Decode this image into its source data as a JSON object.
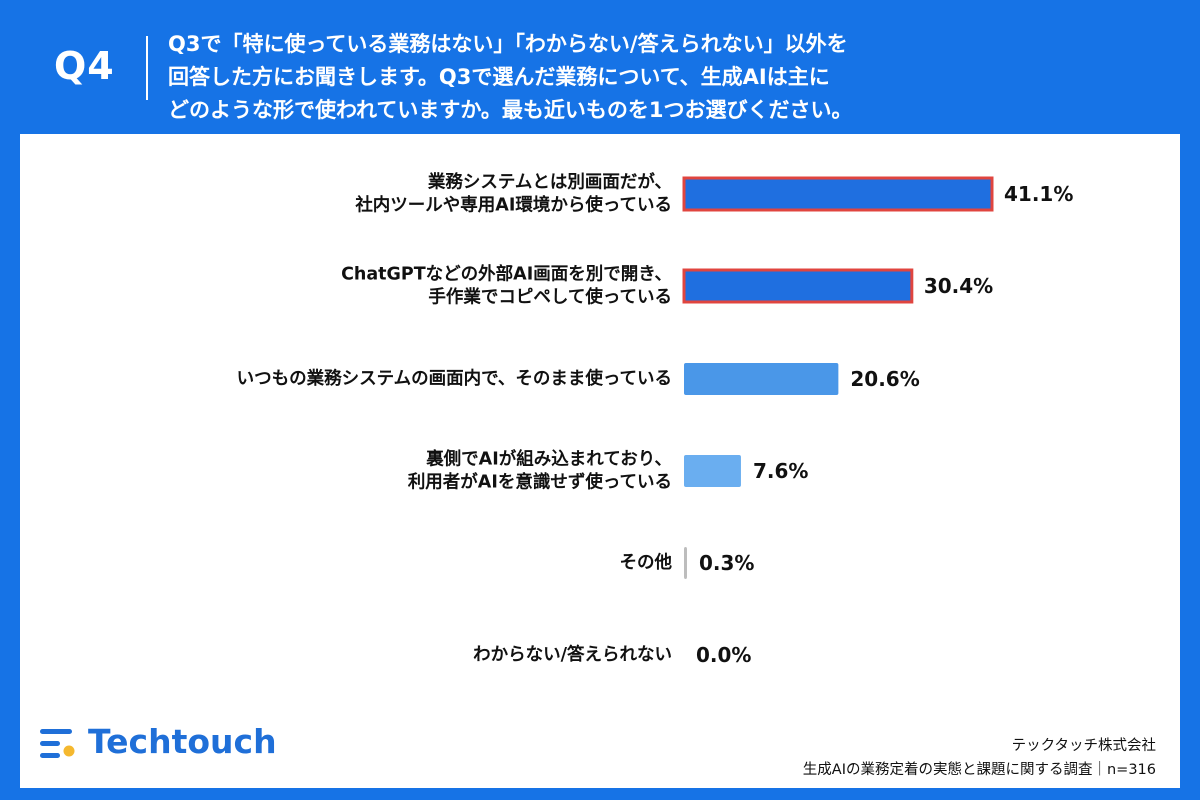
{
  "header": {
    "question_number": "Q4",
    "question_lines": [
      "Q3で「特に使っている業務はない」「わからない/答えられない」以外を",
      "回答した方にお聞きします。Q3で選んだ業務について、生成AIは主に",
      "どのような形で使われていますか。最も近いものを1つお選びください。"
    ]
  },
  "chart_data": {
    "type": "bar",
    "orientation": "horizontal",
    "unit": "%",
    "categories": [
      [
        "業務システムとは別画面だが、",
        "社内ツールや専用AI環境から使っている"
      ],
      [
        "ChatGPTなどの外部AI画面を別で開き、",
        "手作業でコピペして使っている"
      ],
      [
        "いつもの業務システムの画面内で、そのまま使っている"
      ],
      [
        "裏側でAIが組み込まれており、",
        "利用者がAIを意識せず使っている"
      ],
      [
        "その他"
      ],
      [
        "わからない/答えられない"
      ]
    ],
    "values": [
      41.1,
      30.4,
      20.6,
      7.6,
      0.3,
      0.0
    ],
    "value_labels": [
      "41.1%",
      "30.4%",
      "20.6%",
      "7.6%",
      "0.3%",
      "0.0%"
    ],
    "bar_colors": [
      "#1f6fe0",
      "#1f6fe0",
      "#4a97e8",
      "#6aaef0",
      "#bdbdbd",
      "#bdbdbd"
    ],
    "highlight_border": "#e0453f",
    "highlighted": [
      true,
      true,
      false,
      false,
      false,
      false
    ],
    "xlim": [
      0,
      41.1
    ]
  },
  "footer": {
    "logo_text": "Techtouch",
    "company": "テックタッチ株式会社",
    "survey": "生成AIの業務定着の実態と課題に関する調査｜n=316"
  },
  "colors": {
    "background": "#1673e6",
    "panel": "#ffffff",
    "logo": "#1f6fd8"
  }
}
